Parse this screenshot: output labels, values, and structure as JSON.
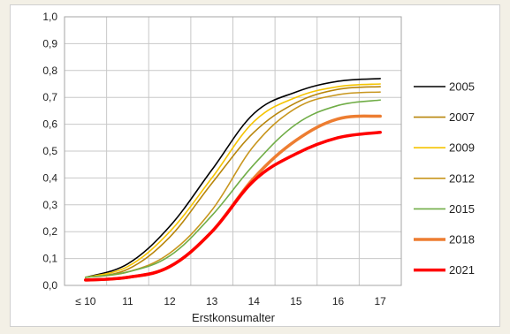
{
  "chart_data": {
    "type": "line",
    "title": "",
    "xlabel": "Erstkonsumalter",
    "ylabel": "",
    "categories": [
      "≤ 10",
      "11",
      "12",
      "13",
      "14",
      "15",
      "16",
      "17"
    ],
    "ylim": [
      0,
      1.0
    ],
    "yticks": [
      "0,0",
      "0,1",
      "0,2",
      "0,3",
      "0,4",
      "0,5",
      "0,6",
      "0,7",
      "0,8",
      "0,9",
      "1,0"
    ],
    "grid": true,
    "legend": "right",
    "series": [
      {
        "name": "2005",
        "color": "#000000",
        "width": 1.6,
        "values": [
          0.03,
          0.08,
          0.22,
          0.43,
          0.64,
          0.72,
          0.76,
          0.77
        ]
      },
      {
        "name": "2007",
        "color": "#b8860b",
        "width": 1.6,
        "values": [
          0.03,
          0.06,
          0.18,
          0.38,
          0.57,
          0.68,
          0.73,
          0.74
        ]
      },
      {
        "name": "2009",
        "color": "#f5c400",
        "width": 1.6,
        "values": [
          0.03,
          0.07,
          0.2,
          0.4,
          0.61,
          0.7,
          0.74,
          0.75
        ]
      },
      {
        "name": "2012",
        "color": "#c8961e",
        "width": 1.6,
        "values": [
          0.03,
          0.05,
          0.12,
          0.28,
          0.52,
          0.66,
          0.71,
          0.72
        ]
      },
      {
        "name": "2015",
        "color": "#70ad47",
        "width": 1.6,
        "values": [
          0.03,
          0.05,
          0.11,
          0.26,
          0.45,
          0.6,
          0.67,
          0.69
        ]
      },
      {
        "name": "2018",
        "color": "#ed7d31",
        "width": 3.5,
        "values": [
          0.02,
          0.03,
          0.07,
          0.2,
          0.4,
          0.54,
          0.62,
          0.63
        ]
      },
      {
        "name": "2021",
        "color": "#ff0000",
        "width": 3.5,
        "values": [
          0.02,
          0.03,
          0.07,
          0.2,
          0.39,
          0.49,
          0.55,
          0.57
        ]
      }
    ]
  }
}
